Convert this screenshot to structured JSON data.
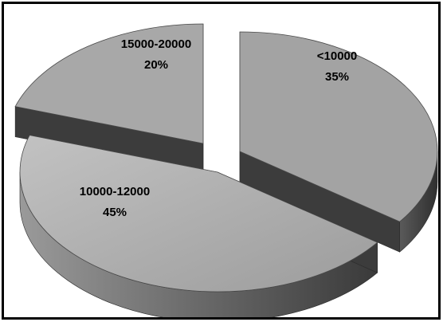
{
  "chart_data": {
    "type": "pie",
    "title": "",
    "categories": [
      "<10000",
      "10000-12000",
      "15000-20000"
    ],
    "values": [
      35,
      45,
      20
    ],
    "labels": [
      {
        "category": "<10000",
        "percent": "35%"
      },
      {
        "category": "10000-12000",
        "percent": "45%"
      },
      {
        "category": "15000-20000",
        "percent": "20%"
      }
    ],
    "exploded": [
      "<10000",
      "15000-20000"
    ],
    "legend": "none",
    "style": "3d",
    "colors": {
      "top_light": "#b4b4b4",
      "top_mid": "#a6a6a6",
      "top_dark": "#9a9a9a",
      "side_dark": "#3f3f3f",
      "side_mid": "#7a7a7a"
    }
  }
}
